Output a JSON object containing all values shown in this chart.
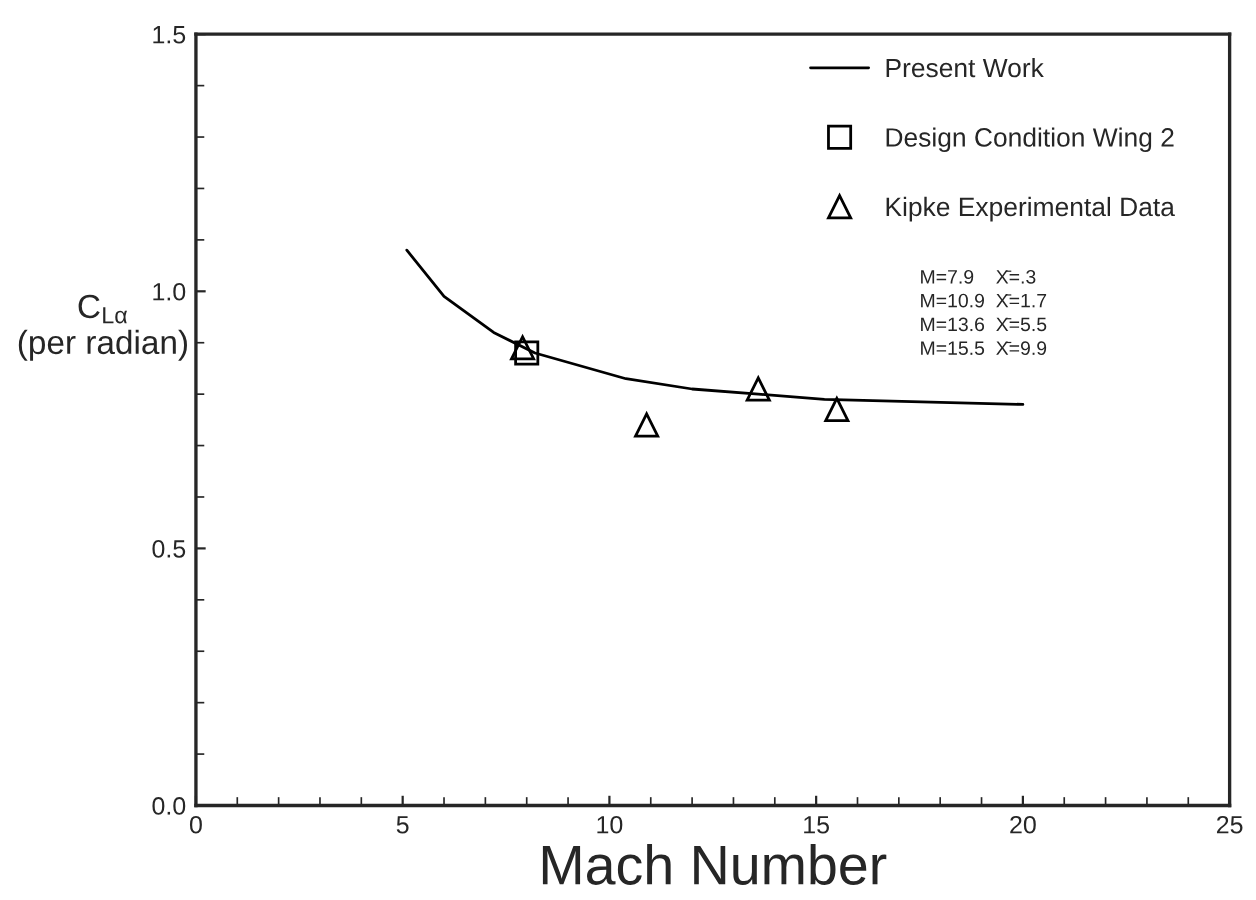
{
  "chart_data": {
    "type": "line",
    "xlabel": "Mach Number",
    "ylabel": "C$_{Lα}$\n(per radian)",
    "xlim": [
      0,
      25
    ],
    "xticks": [
      0,
      5,
      10,
      15,
      20,
      25
    ],
    "ylim": [
      0,
      1.5
    ],
    "yticks": [
      {
        "value": 0,
        "label": "0.0"
      },
      {
        "value": 0.5,
        "label": "0.5"
      },
      {
        "value": 1.0,
        "label": "1.0"
      },
      {
        "value": 1.5,
        "label": "1.5"
      }
    ],
    "grid": false,
    "legend": "top right",
    "series": [
      {
        "name": "Present Work",
        "color": "#000000",
        "marker": "none",
        "line_style": "solid",
        "x": [
          5.1,
          6.0,
          7.2,
          8.2,
          10.4,
          12.0,
          13.6,
          15.2,
          20.0
        ],
        "values": [
          1.08,
          0.99,
          0.92,
          0.88,
          0.83,
          0.81,
          0.8,
          0.79,
          0.78
        ]
      },
      {
        "name": "Design Condition Wing 2",
        "type": "scatter",
        "color": "#000000",
        "marker": "square",
        "x": [
          8.0
        ],
        "values": [
          0.88
        ]
      },
      {
        "name": "Kipke Experimental Data",
        "type": "scatter",
        "color": "#000000",
        "marker": "triangle",
        "x": [
          7.9,
          10.9,
          13.6,
          15.5
        ],
        "values": [
          0.89,
          0.74,
          0.81,
          0.77
        ]
      }
    ],
    "annotations": [
      "M=7.9    X̄=.3\nM=10.9  X̄=1.7\nM=13.6  X̄=5.5\nM=15.5  X̄=9.9"
    ]
  }
}
